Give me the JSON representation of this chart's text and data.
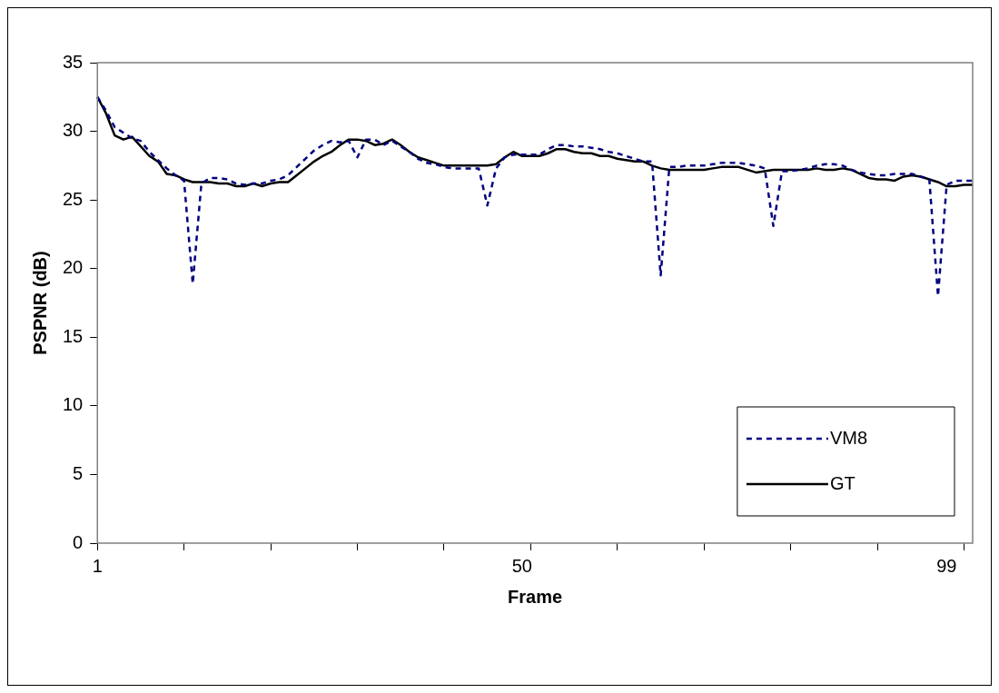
{
  "chart_data": {
    "type": "line",
    "xlabel": "Frame",
    "ylabel": "PSPNR (dB)",
    "categories": [
      "1",
      null,
      null,
      null,
      null,
      null,
      null,
      null,
      null,
      null,
      null,
      null,
      null,
      null,
      null,
      null,
      null,
      null,
      null,
      null,
      null,
      null,
      null,
      null,
      null,
      null,
      null,
      null,
      null,
      null,
      null,
      null,
      null,
      null,
      null,
      null,
      null,
      null,
      null,
      null,
      null,
      null,
      null,
      null,
      null,
      null,
      null,
      null,
      null,
      "50",
      null,
      null,
      null,
      null,
      null,
      null,
      null,
      null,
      null,
      null,
      null,
      null,
      null,
      null,
      null,
      null,
      null,
      null,
      null,
      null,
      null,
      null,
      null,
      null,
      null,
      null,
      null,
      null,
      null,
      null,
      null,
      null,
      null,
      null,
      null,
      null,
      null,
      null,
      null,
      null,
      null,
      null,
      null,
      null,
      null,
      null,
      null,
      null,
      "99",
      null,
      null,
      null
    ],
    "series": [
      {
        "name": "VM8",
        "color": "#000080",
        "line_style": "dashed",
        "values": [
          32.5,
          31.5,
          30.3,
          29.9,
          29.5,
          29.3,
          28.5,
          27.9,
          27.3,
          26.8,
          26.4,
          18.9,
          26.2,
          26.6,
          26.6,
          26.5,
          26.2,
          26.1,
          26.2,
          26.2,
          26.4,
          26.5,
          26.8,
          27.4,
          28.0,
          28.6,
          29.0,
          29.3,
          29.2,
          29.3,
          28.1,
          29.4,
          29.4,
          29.0,
          29.3,
          28.9,
          28.5,
          28.0,
          27.7,
          27.6,
          27.4,
          27.3,
          27.3,
          27.3,
          27.3,
          24.6,
          27.3,
          28.1,
          28.3,
          28.3,
          28.3,
          28.3,
          28.7,
          29.0,
          29.0,
          28.9,
          28.9,
          28.8,
          28.7,
          28.5,
          28.4,
          28.2,
          28.0,
          27.8,
          27.8,
          19.5,
          27.4,
          27.4,
          27.5,
          27.5,
          27.5,
          27.6,
          27.7,
          27.7,
          27.7,
          27.6,
          27.5,
          27.3,
          23.1,
          27.1,
          27.1,
          27.2,
          27.3,
          27.5,
          27.6,
          27.6,
          27.5,
          27.2,
          27.0,
          26.9,
          26.8,
          26.8,
          26.9,
          26.9,
          26.9,
          26.7,
          26.5,
          18.0,
          26.1,
          26.4,
          26.4,
          26.4
        ]
      },
      {
        "name": "GT",
        "color": "#000000",
        "line_style": "solid",
        "values": [
          32.5,
          31.3,
          29.7,
          29.4,
          29.6,
          28.9,
          28.2,
          27.8,
          26.9,
          26.8,
          26.5,
          26.3,
          26.3,
          26.3,
          26.2,
          26.2,
          26.0,
          26.0,
          26.2,
          26.0,
          26.2,
          26.3,
          26.3,
          26.8,
          27.3,
          27.8,
          28.2,
          28.5,
          29.0,
          29.4,
          29.4,
          29.3,
          29.0,
          29.1,
          29.4,
          29.0,
          28.5,
          28.1,
          27.9,
          27.7,
          27.5,
          27.5,
          27.5,
          27.5,
          27.5,
          27.5,
          27.6,
          28.1,
          28.5,
          28.2,
          28.2,
          28.2,
          28.4,
          28.7,
          28.7,
          28.5,
          28.4,
          28.4,
          28.2,
          28.2,
          28.0,
          27.9,
          27.8,
          27.8,
          27.5,
          27.3,
          27.2,
          27.2,
          27.2,
          27.2,
          27.2,
          27.3,
          27.4,
          27.4,
          27.4,
          27.2,
          27.0,
          27.1,
          27.2,
          27.2,
          27.2,
          27.2,
          27.2,
          27.3,
          27.2,
          27.2,
          27.3,
          27.2,
          26.9,
          26.6,
          26.5,
          26.5,
          26.4,
          26.7,
          26.8,
          26.7,
          26.5,
          26.3,
          26.0,
          26.0,
          26.1,
          26.1
        ]
      }
    ],
    "ylim": [
      0,
      35
    ],
    "yticks": [
      0,
      5,
      10,
      15,
      20,
      25,
      30,
      35
    ],
    "grid": false,
    "legend": "bottom right",
    "marker": "none"
  }
}
